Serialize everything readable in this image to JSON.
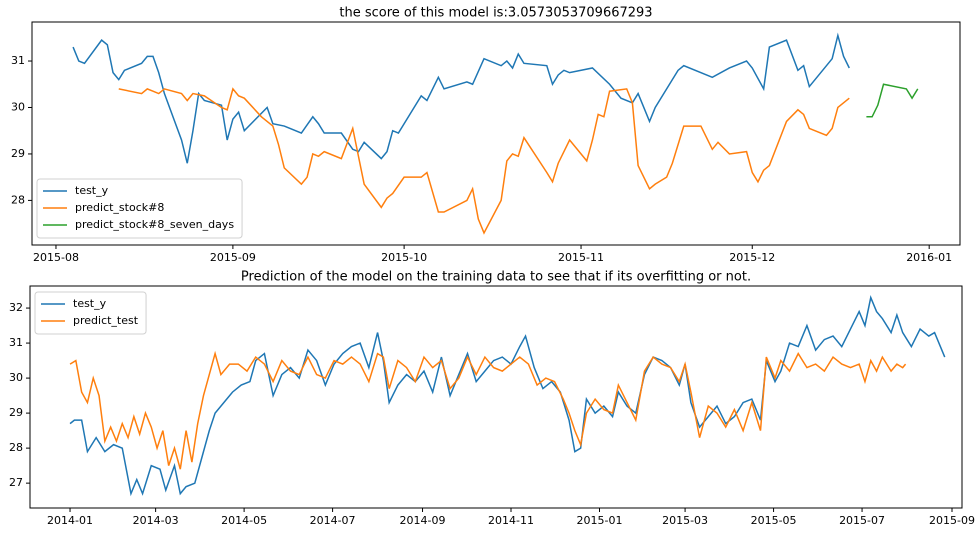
{
  "chart_data": [
    {
      "type": "line",
      "title": "the score of this model is:3.0573053709667293",
      "grid": false,
      "legend": "lower left",
      "xlim": [
        572.8,
        735.4
      ],
      "ylim": [
        27.04,
        31.84
      ],
      "xticks": [
        {
          "value": 577,
          "label": "2015-08"
        },
        {
          "value": 608,
          "label": "2015-09"
        },
        {
          "value": 638,
          "label": "2015-10"
        },
        {
          "value": 669,
          "label": "2015-11"
        },
        {
          "value": 699,
          "label": "2015-12"
        },
        {
          "value": 730,
          "label": "2016-01"
        }
      ],
      "yticks": [
        28,
        29,
        30,
        31
      ],
      "series": [
        {
          "name": "test_y",
          "color": "#1f77b4",
          "x": [
            580,
            581,
            582,
            585,
            586,
            587,
            588,
            589,
            592,
            593,
            594,
            595,
            596,
            599,
            600,
            601,
            602,
            603,
            606,
            607,
            608,
            609,
            610,
            614,
            615,
            617,
            620,
            622,
            623,
            624,
            627,
            629,
            630,
            631,
            634,
            635,
            636,
            637,
            641,
            642,
            644,
            645,
            649,
            650,
            652,
            655,
            656,
            657,
            658,
            659,
            663,
            664,
            665,
            666,
            667,
            671,
            674,
            676,
            678,
            679,
            681,
            682,
            685,
            686,
            687,
            692,
            695,
            698,
            699,
            701,
            702,
            705,
            707,
            708,
            709,
            712,
            713,
            714,
            715,
            716
          ],
          "values": [
            31.3,
            31.0,
            30.95,
            31.45,
            31.35,
            30.75,
            30.6,
            30.8,
            30.95,
            31.1,
            31.1,
            30.75,
            30.3,
            29.3,
            28.8,
            29.5,
            30.3,
            30.15,
            30.05,
            29.3,
            29.75,
            29.9,
            29.5,
            30.0,
            29.65,
            29.6,
            29.45,
            29.8,
            29.65,
            29.45,
            29.45,
            29.1,
            29.05,
            29.25,
            28.9,
            29.05,
            29.5,
            29.45,
            30.25,
            30.15,
            30.65,
            30.4,
            30.55,
            30.5,
            31.05,
            30.9,
            31.0,
            30.85,
            31.15,
            30.95,
            30.9,
            30.5,
            30.7,
            30.8,
            30.75,
            30.85,
            30.5,
            30.2,
            30.1,
            30.3,
            29.7,
            30.0,
            30.6,
            30.8,
            30.9,
            30.65,
            30.85,
            31.0,
            30.85,
            30.4,
            31.3,
            31.45,
            30.8,
            30.9,
            30.45,
            30.9,
            31.05,
            31.55,
            31.1,
            30.85
          ]
        },
        {
          "name": "predict_stock#8",
          "color": "#ff7f0e",
          "x": [
            588,
            592,
            593,
            594,
            595,
            596,
            599,
            600,
            601,
            603,
            606,
            607,
            608,
            609,
            610,
            613,
            615,
            616,
            617,
            620,
            621,
            622,
            623,
            624,
            627,
            629,
            631,
            634,
            635,
            636,
            638,
            641,
            642,
            644,
            645,
            649,
            650,
            651,
            652,
            655,
            656,
            657,
            658,
            659,
            663,
            664,
            665,
            667,
            670,
            671,
            672,
            673,
            674,
            677,
            678,
            679,
            681,
            682,
            684,
            685,
            687,
            690,
            692,
            693,
            695,
            698,
            699,
            700,
            701,
            702,
            705,
            707,
            708,
            709,
            712,
            713,
            714,
            715,
            716
          ],
          "values": [
            30.4,
            30.3,
            30.4,
            30.35,
            30.3,
            30.4,
            30.3,
            30.15,
            30.3,
            30.25,
            30.0,
            29.95,
            30.4,
            30.25,
            30.2,
            29.8,
            29.6,
            29.2,
            28.7,
            28.35,
            28.5,
            29.0,
            28.95,
            29.05,
            28.9,
            29.55,
            28.35,
            27.85,
            28.05,
            28.15,
            28.5,
            28.5,
            28.6,
            27.75,
            27.75,
            28.0,
            28.25,
            27.6,
            27.3,
            28.0,
            28.85,
            29.0,
            28.95,
            29.35,
            28.6,
            28.4,
            28.8,
            29.3,
            28.85,
            29.3,
            29.85,
            29.8,
            30.35,
            30.4,
            30.1,
            28.75,
            28.25,
            28.35,
            28.5,
            28.8,
            29.6,
            29.6,
            29.1,
            29.25,
            29.0,
            29.05,
            28.6,
            28.4,
            28.65,
            28.75,
            29.7,
            29.95,
            29.85,
            29.55,
            29.4,
            29.55,
            30.0,
            30.1,
            30.2
          ]
        },
        {
          "name": "predict_stock#8_seven_days",
          "color": "#2ca02c",
          "x": [
            719,
            720,
            721,
            722,
            726,
            727,
            728
          ],
          "values": [
            29.8,
            29.8,
            30.05,
            30.5,
            30.4,
            30.2,
            30.4
          ]
        }
      ]
    },
    {
      "type": "line",
      "title": "Prediction of the model on the training data to see that if its overfitting or not.",
      "grid": false,
      "legend": "upper left",
      "xlim": [
        -27.6,
        614.9
      ],
      "ylim": [
        26.29,
        32.63
      ],
      "xticks": [
        {
          "value": 0,
          "label": "2014-01"
        },
        {
          "value": 59,
          "label": "2014-03"
        },
        {
          "value": 120,
          "label": "2014-05"
        },
        {
          "value": 181,
          "label": "2014-07"
        },
        {
          "value": 243,
          "label": "2014-09"
        },
        {
          "value": 304,
          "label": "2014-11"
        },
        {
          "value": 365,
          "label": "2015-01"
        },
        {
          "value": 424,
          "label": "2015-03"
        },
        {
          "value": 485,
          "label": "2015-05"
        },
        {
          "value": 546,
          "label": "2015-07"
        },
        {
          "value": 608,
          "label": "2015-09"
        }
      ],
      "yticks": [
        27,
        28,
        29,
        30,
        31,
        32
      ],
      "series": [
        {
          "name": "test_y",
          "color": "#1f77b4",
          "x": [
            0,
            3,
            8,
            12,
            18,
            24,
            30,
            36,
            42,
            46,
            50,
            56,
            62,
            66,
            72,
            76,
            80,
            86,
            92,
            96,
            100,
            106,
            112,
            118,
            124,
            128,
            134,
            140,
            146,
            152,
            158,
            164,
            170,
            176,
            182,
            188,
            194,
            200,
            206,
            212,
            216,
            220,
            226,
            232,
            238,
            244,
            250,
            256,
            262,
            268,
            274,
            280,
            286,
            292,
            298,
            304,
            310,
            314,
            320,
            326,
            332,
            338,
            344,
            348,
            352,
            356,
            362,
            368,
            374,
            378,
            384,
            390,
            396,
            402,
            408,
            414,
            420,
            424,
            428,
            434,
            440,
            446,
            452,
            458,
            464,
            470,
            476,
            480,
            486,
            490,
            496,
            502,
            508,
            514,
            520,
            526,
            532,
            538,
            544,
            548,
            552,
            556,
            560,
            566,
            570,
            574,
            580,
            586,
            592,
            596,
            603
          ],
          "values": [
            28.7,
            28.8,
            28.8,
            27.9,
            28.3,
            27.9,
            28.1,
            28.0,
            26.7,
            27.1,
            26.7,
            27.5,
            27.4,
            26.8,
            27.5,
            26.7,
            26.9,
            27.0,
            27.9,
            28.5,
            29.0,
            29.3,
            29.6,
            29.8,
            29.9,
            30.5,
            30.7,
            29.5,
            30.1,
            30.3,
            30.0,
            30.8,
            30.5,
            29.8,
            30.4,
            30.7,
            30.9,
            31.0,
            30.3,
            31.3,
            30.5,
            29.3,
            29.8,
            30.1,
            29.9,
            30.2,
            29.6,
            30.6,
            29.5,
            30.1,
            30.7,
            29.9,
            30.2,
            30.5,
            30.6,
            30.4,
            30.9,
            31.2,
            30.3,
            29.7,
            29.9,
            29.6,
            28.8,
            27.9,
            28.0,
            29.4,
            29.0,
            29.2,
            28.9,
            29.6,
            29.2,
            29.0,
            30.1,
            30.6,
            30.5,
            30.3,
            29.8,
            30.4,
            29.3,
            28.6,
            28.9,
            29.2,
            28.7,
            28.9,
            29.3,
            29.4,
            28.8,
            30.5,
            29.9,
            30.2,
            31.0,
            30.9,
            31.5,
            30.8,
            31.1,
            31.2,
            30.9,
            31.4,
            31.9,
            31.5,
            32.3,
            31.9,
            31.7,
            31.3,
            31.8,
            31.3,
            30.9,
            31.4,
            31.2,
            31.3,
            30.6
          ]
        },
        {
          "name": "predict_test",
          "color": "#ff7f0e",
          "x": [
            0,
            4,
            8,
            12,
            16,
            20,
            24,
            28,
            32,
            36,
            40,
            44,
            48,
            52,
            56,
            60,
            64,
            68,
            72,
            76,
            80,
            84,
            88,
            92,
            96,
            100,
            104,
            110,
            116,
            122,
            128,
            134,
            140,
            146,
            152,
            158,
            164,
            170,
            176,
            182,
            188,
            194,
            200,
            206,
            212,
            216,
            220,
            226,
            232,
            238,
            244,
            250,
            256,
            262,
            268,
            274,
            280,
            286,
            292,
            298,
            304,
            310,
            316,
            322,
            328,
            334,
            340,
            344,
            348,
            352,
            356,
            362,
            368,
            374,
            378,
            384,
            390,
            396,
            402,
            408,
            414,
            420,
            424,
            428,
            434,
            440,
            446,
            452,
            458,
            464,
            470,
            476,
            480,
            486,
            490,
            496,
            502,
            508,
            514,
            520,
            526,
            532,
            538,
            544,
            548,
            552,
            556,
            560,
            566,
            570,
            574,
            576
          ],
          "values": [
            30.4,
            30.5,
            29.6,
            29.3,
            30.0,
            29.5,
            28.2,
            28.6,
            28.2,
            28.7,
            28.3,
            28.9,
            28.4,
            29.0,
            28.6,
            28.0,
            28.5,
            27.5,
            28.0,
            27.4,
            28.5,
            27.6,
            28.7,
            29.5,
            30.1,
            30.7,
            30.1,
            30.4,
            30.4,
            30.2,
            30.6,
            30.4,
            29.9,
            30.5,
            30.2,
            30.1,
            30.6,
            30.1,
            30.0,
            30.5,
            30.4,
            30.6,
            30.4,
            29.9,
            30.7,
            30.6,
            29.7,
            30.5,
            30.3,
            29.9,
            30.6,
            30.3,
            30.5,
            29.7,
            30.0,
            30.6,
            30.1,
            30.6,
            30.3,
            30.2,
            30.4,
            30.6,
            30.4,
            29.8,
            30.0,
            29.9,
            29.4,
            29.0,
            28.5,
            28.1,
            29.0,
            29.4,
            29.1,
            29.0,
            29.8,
            29.3,
            28.8,
            30.2,
            30.6,
            30.4,
            30.3,
            29.9,
            30.4,
            29.6,
            28.3,
            29.2,
            29.0,
            28.6,
            29.1,
            28.5,
            29.3,
            28.5,
            30.6,
            30.0,
            30.5,
            30.2,
            30.7,
            30.3,
            30.4,
            30.2,
            30.6,
            30.4,
            30.3,
            30.4,
            29.9,
            30.5,
            30.2,
            30.6,
            30.2,
            30.4,
            30.3,
            30.4
          ]
        }
      ]
    }
  ]
}
